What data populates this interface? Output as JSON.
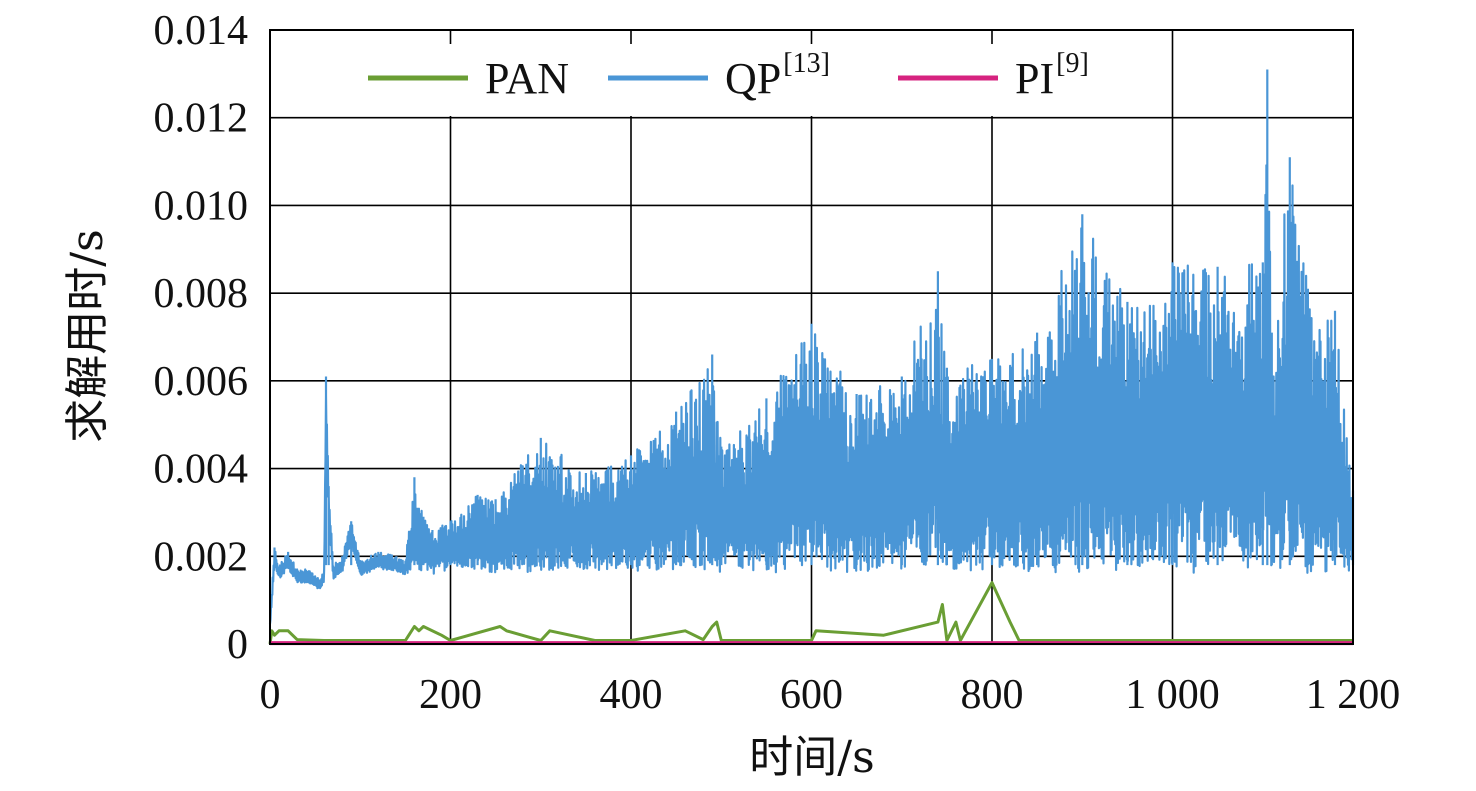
{
  "chart_data": {
    "type": "line",
    "xlabel": "时间/s",
    "ylabel": "求解用时/s",
    "xlim": [
      0,
      1200
    ],
    "ylim": [
      0,
      0.014
    ],
    "grid": true,
    "legend_position": "top-center",
    "x_ticks": [
      0,
      200,
      400,
      600,
      800,
      1000,
      1200
    ],
    "x_tick_labels": [
      "0",
      "200",
      "400",
      "600",
      "800",
      "1 000",
      "1 200"
    ],
    "y_ticks": [
      0,
      0.002,
      0.004,
      0.006,
      0.008,
      0.01,
      0.012,
      0.014
    ],
    "y_tick_labels": [
      "0",
      "0.002",
      "0.004",
      "0.006",
      "0.008",
      "0.010",
      "0.012",
      "0.014"
    ],
    "series": [
      {
        "name": "PAN",
        "superscript": "",
        "color": "#6a9e34",
        "x": [
          0,
          2,
          5,
          10,
          20,
          30,
          60,
          100,
          150,
          160,
          165,
          170,
          190,
          200,
          255,
          262,
          300,
          310,
          360,
          400,
          460,
          480,
          490,
          495,
          500,
          600,
          605,
          680,
          740,
          745,
          750,
          760,
          765,
          800,
          820,
          830,
          900,
          1000,
          1100,
          1200
        ],
        "values": [
          0.0,
          0.0003,
          0.0002,
          0.0003,
          0.0003,
          0.0001,
          8e-05,
          8e-05,
          8e-05,
          0.0004,
          0.0003,
          0.0004,
          0.0002,
          8e-05,
          0.0004,
          0.0003,
          8e-05,
          0.0003,
          8e-05,
          8e-05,
          0.0003,
          0.0001,
          0.0004,
          0.0005,
          8e-05,
          8e-05,
          0.0003,
          0.0002,
          0.0005,
          0.0009,
          8e-05,
          0.0005,
          8e-05,
          0.0014,
          0.0005,
          8e-05,
          8e-05,
          8e-05,
          8e-05,
          8e-05
        ]
      },
      {
        "name": "QP",
        "superscript": "[13]",
        "color": "#4a96d6",
        "x": [
          0,
          5,
          10,
          20,
          30,
          40,
          50,
          55,
          60,
          62,
          65,
          70,
          80,
          90,
          100,
          120,
          140,
          150,
          160,
          170,
          180,
          200,
          230,
          250,
          300,
          350,
          400,
          450,
          490,
          500,
          550,
          600,
          650,
          700,
          740,
          750,
          800,
          850,
          900,
          950,
          1000,
          1050,
          1100,
          1105,
          1110,
          1130,
          1150,
          1180,
          1200
        ],
        "values": [
          0.0005,
          0.0022,
          0.0018,
          0.0021,
          0.0017,
          0.0017,
          0.0016,
          0.0015,
          0.0017,
          0.0061,
          0.0036,
          0.0018,
          0.002,
          0.0028,
          0.0019,
          0.0021,
          0.002,
          0.0019,
          0.0038,
          0.0029,
          0.0026,
          0.0028,
          0.0034,
          0.0033,
          0.0047,
          0.0039,
          0.0043,
          0.0053,
          0.0066,
          0.0045,
          0.0056,
          0.0073,
          0.0057,
          0.0061,
          0.0085,
          0.0063,
          0.0065,
          0.0071,
          0.0098,
          0.0078,
          0.0087,
          0.0086,
          0.0087,
          0.0131,
          0.0071,
          0.0111,
          0.0081,
          0.0076,
          0.0035
        ]
      },
      {
        "name": "PI",
        "superscript": "[9]",
        "color": "#d6237f",
        "x": [
          0,
          1200
        ],
        "values": [
          2e-05,
          2e-05
        ]
      }
    ]
  }
}
